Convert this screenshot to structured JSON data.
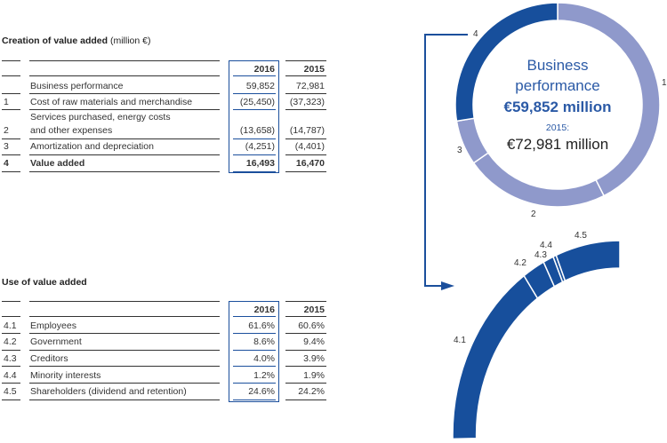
{
  "creation": {
    "title": "Creation of value added",
    "unit": "(million €)",
    "col_2016": "2016",
    "col_2015": "2015",
    "rows": [
      {
        "num": "",
        "label": "Business performance",
        "v2016": "59,852",
        "v2015": "72,981",
        "bold": false
      },
      {
        "num": "1",
        "label": "Cost of raw materials and merchandise",
        "v2016": "(25,450)",
        "v2015": "(37,323)",
        "bold": false
      },
      {
        "num": "2",
        "label": "Services purchased, energy costs",
        "label2": "and other expenses",
        "v2016": "(13,658)",
        "v2015": "(14,787)",
        "bold": false
      },
      {
        "num": "3",
        "label": "Amortization and depreciation",
        "v2016": "(4,251)",
        "v2015": "(4,401)",
        "bold": false
      },
      {
        "num": "4",
        "label": "Value added",
        "v2016": "16,493",
        "v2015": "16,470",
        "bold": true
      }
    ]
  },
  "use": {
    "title": "Use of value added",
    "col_2016": "2016",
    "col_2015": "2015",
    "rows": [
      {
        "num": "4.1",
        "label": "Employees",
        "v2016": "61.6%",
        "v2015": "60.6%"
      },
      {
        "num": "4.2",
        "label": "Government",
        "v2016": "8.6%",
        "v2015": "9.4%"
      },
      {
        "num": "4.3",
        "label": "Creditors",
        "v2016": "4.0%",
        "v2015": "3.9%"
      },
      {
        "num": "4.4",
        "label": "Minority interests",
        "v2016": "1.2%",
        "v2015": "1.9%"
      },
      {
        "num": "4.5",
        "label": "Shareholders (dividend and retention)",
        "v2016": "24.6%",
        "v2015": "24.2%"
      }
    ]
  },
  "donut": {
    "center_title_1": "Business",
    "center_title_2": "performance",
    "center_value": "€59,852 million",
    "prev_label": "2015:",
    "prev_value": "€72,981 million",
    "segments": [
      {
        "label": "1",
        "value": 25450,
        "color": "#8f99cb"
      },
      {
        "label": "2",
        "value": 13658,
        "color": "#8f99cb"
      },
      {
        "label": "3",
        "value": 4251,
        "color": "#8f99cb"
      },
      {
        "label": "4",
        "value": 16493,
        "color": "#174f9c"
      }
    ]
  },
  "arc": {
    "segments": [
      {
        "label": "4.1",
        "value": 61.6
      },
      {
        "label": "4.2",
        "value": 8.6
      },
      {
        "label": "4.3",
        "value": 4.0
      },
      {
        "label": "4.4",
        "value": 1.2
      },
      {
        "label": "4.5",
        "value": 24.6
      }
    ],
    "color": "#174f9c"
  },
  "colors": {
    "accent": "#1b4f9c",
    "text_blue": "#2b5aa6"
  }
}
